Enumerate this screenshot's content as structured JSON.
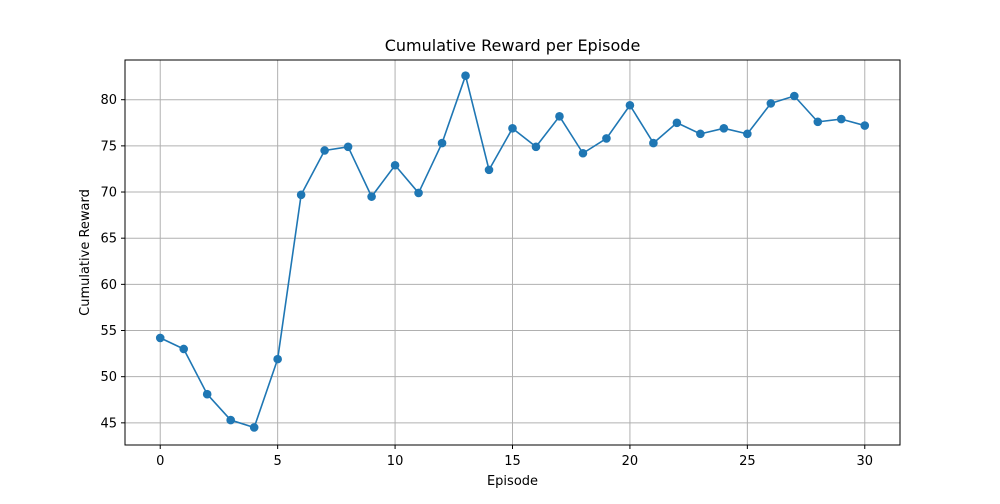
{
  "chart_data": {
    "type": "line",
    "title": "Cumulative Reward per Episode",
    "xlabel": "Episode",
    "ylabel": "Cumulative Reward",
    "xlim": [
      -1.5,
      31.5
    ],
    "ylim": [
      42.6,
      84.3
    ],
    "xticks": [
      0,
      5,
      10,
      15,
      20,
      25,
      30
    ],
    "yticks": [
      45,
      50,
      55,
      60,
      65,
      70,
      75,
      80
    ],
    "grid": true,
    "legend": "none",
    "series": [
      {
        "color": "#1f77b4",
        "marker": "circle",
        "x": [
          0,
          1,
          2,
          3,
          4,
          5,
          6,
          7,
          8,
          9,
          10,
          11,
          12,
          13,
          14,
          15,
          16,
          17,
          18,
          19,
          20,
          21,
          22,
          23,
          24,
          25,
          26,
          27,
          28,
          29,
          30
        ],
        "y": [
          54.2,
          53.0,
          48.1,
          45.3,
          44.5,
          51.9,
          69.7,
          74.5,
          74.9,
          69.5,
          72.9,
          69.9,
          75.3,
          82.6,
          72.4,
          76.9,
          74.9,
          78.2,
          74.2,
          75.8,
          79.4,
          75.3,
          77.5,
          76.3,
          76.9,
          76.3,
          79.6,
          80.4,
          77.6,
          77.9,
          77.2
        ]
      }
    ]
  }
}
